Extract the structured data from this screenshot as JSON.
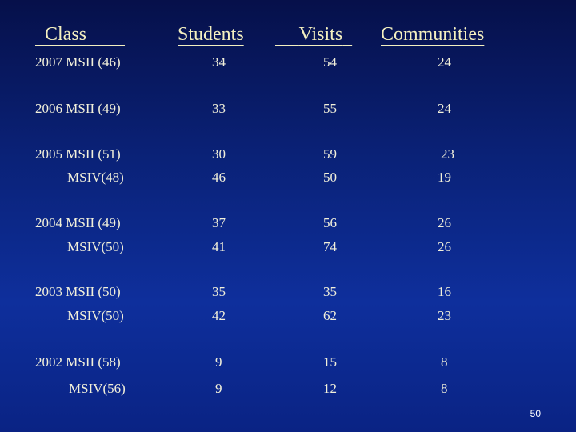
{
  "headers": {
    "class": "Class",
    "students": "Students",
    "visits": "Visits",
    "communities": "Communities"
  },
  "rows": [
    {
      "class": "2007 MSII (46)",
      "students": "34",
      "visits": "54",
      "communities": "24"
    },
    {
      "class": "2006 MSII (49)",
      "students": "33",
      "visits": "55",
      "communities": "24"
    },
    {
      "class": "2005 MSII (51)",
      "students": "30",
      "visits": "59",
      "communities": "23"
    },
    {
      "class": "MSIV(48)",
      "students": "46",
      "visits": "50",
      "communities": "19"
    },
    {
      "class": "2004 MSII (49)",
      "students": "37",
      "visits": "56",
      "communities": "26"
    },
    {
      "class": "MSIV(50)",
      "students": "41",
      "visits": "74",
      "communities": "26"
    },
    {
      "class": "2003 MSII (50)",
      "students": "35",
      "visits": "35",
      "communities": "16"
    },
    {
      "class": "MSIV(50)",
      "students": "42",
      "visits": "62",
      "communities": "23"
    },
    {
      "class": "2002 MSII (58)",
      "students": "9",
      "visits": "15",
      "communities": "8"
    },
    {
      "class": "MSIV(56)",
      "students": "9",
      "visits": "12",
      "communities": "8"
    }
  ],
  "page_number": "50"
}
